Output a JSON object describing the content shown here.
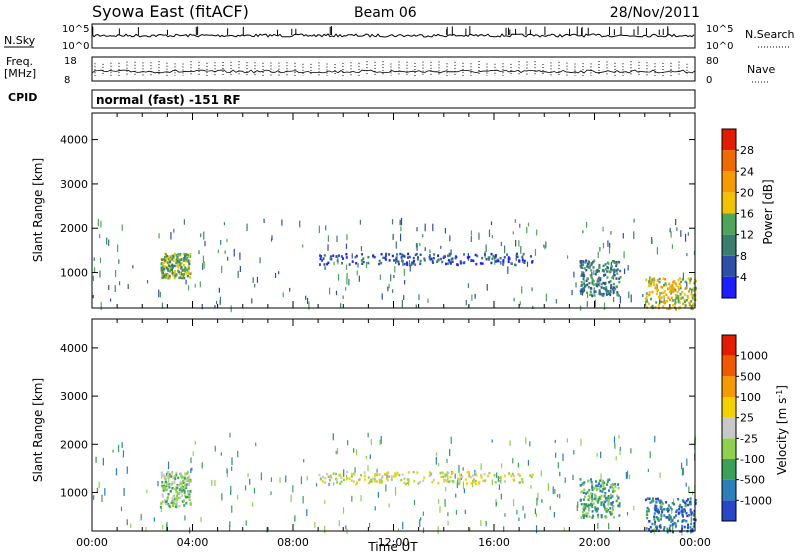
{
  "header": {
    "station": "Syowa East (fitACF)",
    "beam": "Beam 06",
    "date": "28/Nov/2011"
  },
  "status_panels": {
    "nsky_label": "N.Sky",
    "nsearch_label": "N.Search",
    "nsky_ticks": [
      "10^5",
      "10^0"
    ],
    "nsearch_ticks": [
      "10^5",
      "10^0"
    ],
    "freq_label": [
      "Freq.",
      "[MHz]"
    ],
    "freq_ticks": [
      "18",
      "8"
    ],
    "nave_label": "Nave",
    "nave_ticks": [
      "80",
      "0"
    ],
    "cpid_label": "CPID",
    "cpid_text": "normal (fast) -151 RF"
  },
  "chart_data": [
    {
      "type": "heatmap",
      "name": "power",
      "xlabel": "",
      "ylabel": "Slant Range [km]",
      "xlim": [
        0,
        24
      ],
      "ylim": [
        200,
        4600
      ],
      "yticks": [
        "1000",
        "2000",
        "3000",
        "4000"
      ],
      "colorbar_label": "Power [dB]",
      "colorbar_ticks": [
        "4",
        "8",
        "12",
        "16",
        "20",
        "24",
        "28"
      ],
      "colors": [
        "#1d1dff",
        "#2d4fa8",
        "#3a7f6e",
        "#4fa55a",
        "#f2c200",
        "#f59a00",
        "#ef6a00",
        "#e21c00"
      ],
      "scatter_regions": [
        {
          "x": [
            2.7,
            3.9
          ],
          "y": [
            900,
            1450
          ],
          "level": 3
        },
        {
          "x": [
            9.0,
            17.5
          ],
          "y": [
            1200,
            1450
          ],
          "level": 1
        },
        {
          "x": [
            19.4,
            21.0
          ],
          "y": [
            500,
            1300
          ],
          "level": 2
        },
        {
          "x": [
            22.0,
            24.0
          ],
          "y": [
            200,
            900
          ],
          "level": 4
        }
      ]
    },
    {
      "type": "heatmap",
      "name": "velocity",
      "xlabel": "Time UT",
      "ylabel": "Slant Range [km]",
      "xlim": [
        0,
        24
      ],
      "ylim": [
        200,
        4600
      ],
      "yticks": [
        "1000",
        "2000",
        "3000",
        "4000"
      ],
      "xticks": [
        "00:00",
        "04:00",
        "08:00",
        "12:00",
        "16:00",
        "20:00",
        "00:00"
      ],
      "colorbar_label": "Velocity [m s^-1]",
      "colorbar_ticks": [
        "1000",
        "500",
        "100",
        "25",
        "-25",
        "-100",
        "-500",
        "-1000"
      ],
      "colors": [
        "#2846c8",
        "#2c7fb8",
        "#3aa05a",
        "#8fd14f",
        "#c8c8c8",
        "#f5d000",
        "#f59a00",
        "#ef5a00",
        "#e21c00"
      ],
      "scatter_regions": [
        {
          "x": [
            2.7,
            3.9
          ],
          "y": [
            700,
            1450
          ],
          "level": 3
        },
        {
          "x": [
            9.0,
            17.5
          ],
          "y": [
            1200,
            1450
          ],
          "level": 4
        },
        {
          "x": [
            19.4,
            21.0
          ],
          "y": [
            500,
            1300
          ],
          "level": 2
        },
        {
          "x": [
            22.0,
            24.0
          ],
          "y": [
            200,
            900
          ],
          "level": 1
        }
      ]
    }
  ]
}
